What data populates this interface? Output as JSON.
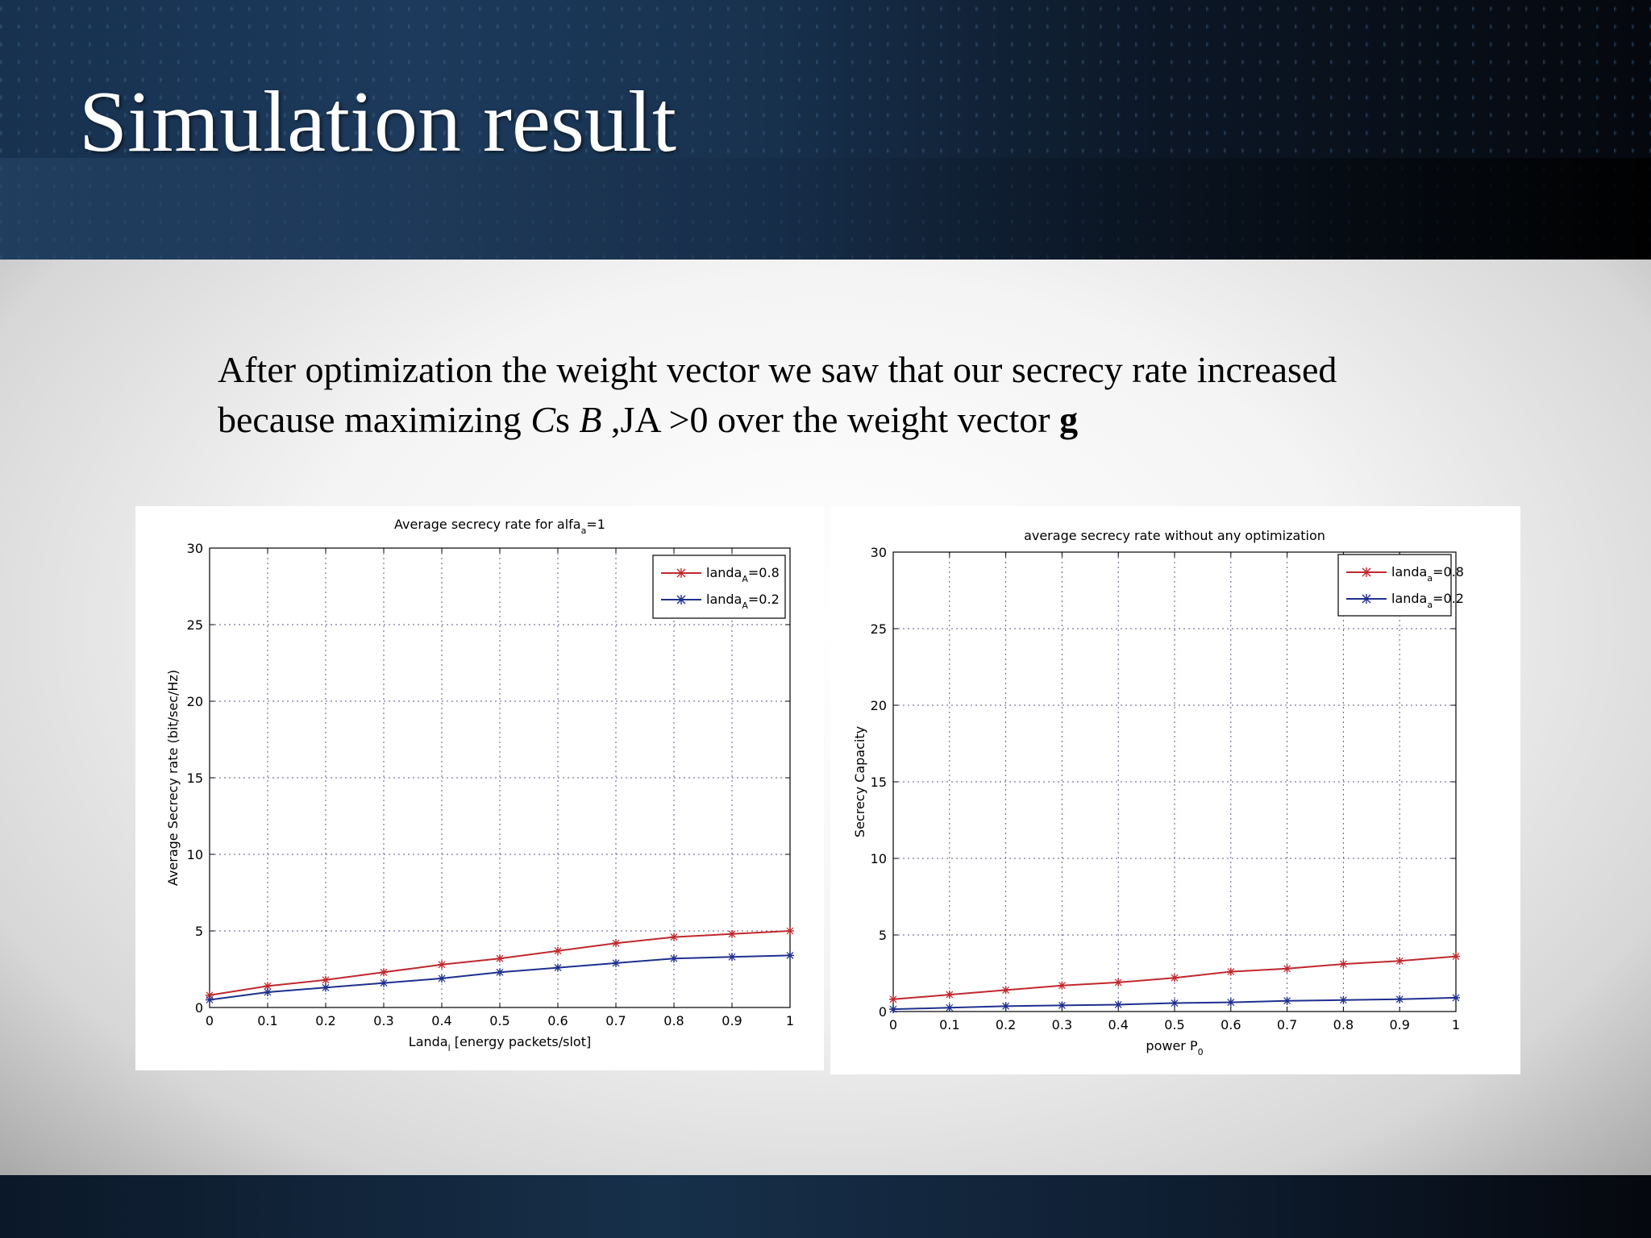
{
  "slide": {
    "title": "Simulation result",
    "body": {
      "line1": "After optimization the weight vector we saw that our secrecy rate increased",
      "line2_a": "because maximizing ",
      "line2_cs_c": "C",
      "line2_cs_s": "s ",
      "line2_b": "B",
      "line2_c": " ,JA >0 over the weight vector ",
      "line2_g": "g"
    }
  },
  "chart_data": [
    {
      "type": "line",
      "title": "Average secrecy rate for alfa",
      "title_sub": "a",
      "title_tail": "=1",
      "xlabel": "Landa",
      "xlabel_sub": "l",
      "xlabel_tail": " [energy packets/slot]",
      "ylabel": "Average Secrecy rate (bit/sec/Hz)",
      "xlim": [
        0,
        1
      ],
      "ylim": [
        0,
        30
      ],
      "xticks": [
        "0",
        "0.1",
        "0.2",
        "0.3",
        "0.4",
        "0.5",
        "0.6",
        "0.7",
        "0.8",
        "0.9",
        "1"
      ],
      "yticks": [
        "0",
        "5",
        "10",
        "15",
        "20",
        "25",
        "30"
      ],
      "grid": true,
      "legend_position": "top-right",
      "x": [
        0,
        0.1,
        0.2,
        0.3,
        0.4,
        0.5,
        0.6,
        0.7,
        0.8,
        0.9,
        1
      ],
      "series": [
        {
          "name": "landa",
          "name_sub": "A",
          "name_tail": "=0.8",
          "color": "#c0282d",
          "values": [
            0.8,
            1.4,
            1.8,
            2.3,
            2.8,
            3.2,
            3.7,
            4.2,
            4.6,
            4.8,
            5.0
          ]
        },
        {
          "name": "landa",
          "name_sub": "A",
          "name_tail": "=0.2",
          "color": "#1f2f8f",
          "values": [
            0.5,
            1.0,
            1.3,
            1.6,
            1.9,
            2.3,
            2.6,
            2.9,
            3.2,
            3.3,
            3.4
          ]
        }
      ]
    },
    {
      "type": "line",
      "title": "average secrecy rate without any optimization",
      "title_sub": "",
      "title_tail": "",
      "xlabel": "power P",
      "xlabel_sub": "0",
      "xlabel_tail": "",
      "ylabel": "Secrecy Capacity",
      "xlim": [
        0,
        1
      ],
      "ylim": [
        0,
        30
      ],
      "xticks": [
        "0",
        "0.1",
        "0.2",
        "0.3",
        "0.4",
        "0.5",
        "0.6",
        "0.7",
        "0.8",
        "0.9",
        "1"
      ],
      "yticks": [
        "0",
        "5",
        "10",
        "15",
        "20",
        "25",
        "30"
      ],
      "grid": true,
      "legend_position": "top-right",
      "x": [
        0,
        0.1,
        0.2,
        0.3,
        0.4,
        0.5,
        0.6,
        0.7,
        0.8,
        0.9,
        1
      ],
      "series": [
        {
          "name": "landa",
          "name_sub": "a",
          "name_tail": "=0.8",
          "color": "#c0282d",
          "values": [
            0.8,
            1.1,
            1.4,
            1.7,
            1.9,
            2.2,
            2.6,
            2.8,
            3.1,
            3.3,
            3.6
          ]
        },
        {
          "name": "landa",
          "name_sub": "a",
          "name_tail": "=0.2",
          "color": "#1f2f8f",
          "values": [
            0.15,
            0.25,
            0.35,
            0.4,
            0.45,
            0.55,
            0.6,
            0.7,
            0.75,
            0.8,
            0.9
          ]
        }
      ]
    }
  ]
}
